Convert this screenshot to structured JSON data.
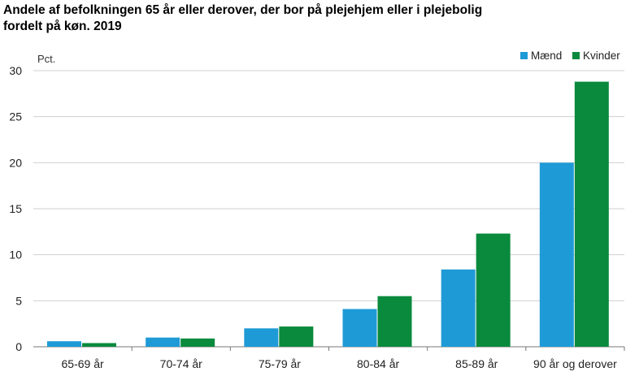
{
  "chart_data": {
    "type": "bar",
    "title_line1": "Andele af befolkningen 65 år eller derover, der bor på plejehjem eller i plejebolig",
    "title_line2": "fordelt på køn. 2019",
    "ylabel": "Pct.",
    "xlabel": "",
    "ylim": [
      0,
      30
    ],
    "yticks": [
      0,
      5,
      10,
      15,
      20,
      25,
      30
    ],
    "grid": true,
    "legend_position": "top-right",
    "categories": [
      "65-69 år",
      "70-74 år",
      "75-79 år",
      "80-84 år",
      "85-89 år",
      "90 år og derover"
    ],
    "series": [
      {
        "name": "Mænd",
        "color": "#1e9ad6",
        "values": [
          0.6,
          1.0,
          2.0,
          4.1,
          8.4,
          20.0
        ]
      },
      {
        "name": "Kvinder",
        "color": "#0a8a3c",
        "values": [
          0.4,
          0.9,
          2.2,
          5.5,
          12.3,
          28.8
        ]
      }
    ]
  }
}
